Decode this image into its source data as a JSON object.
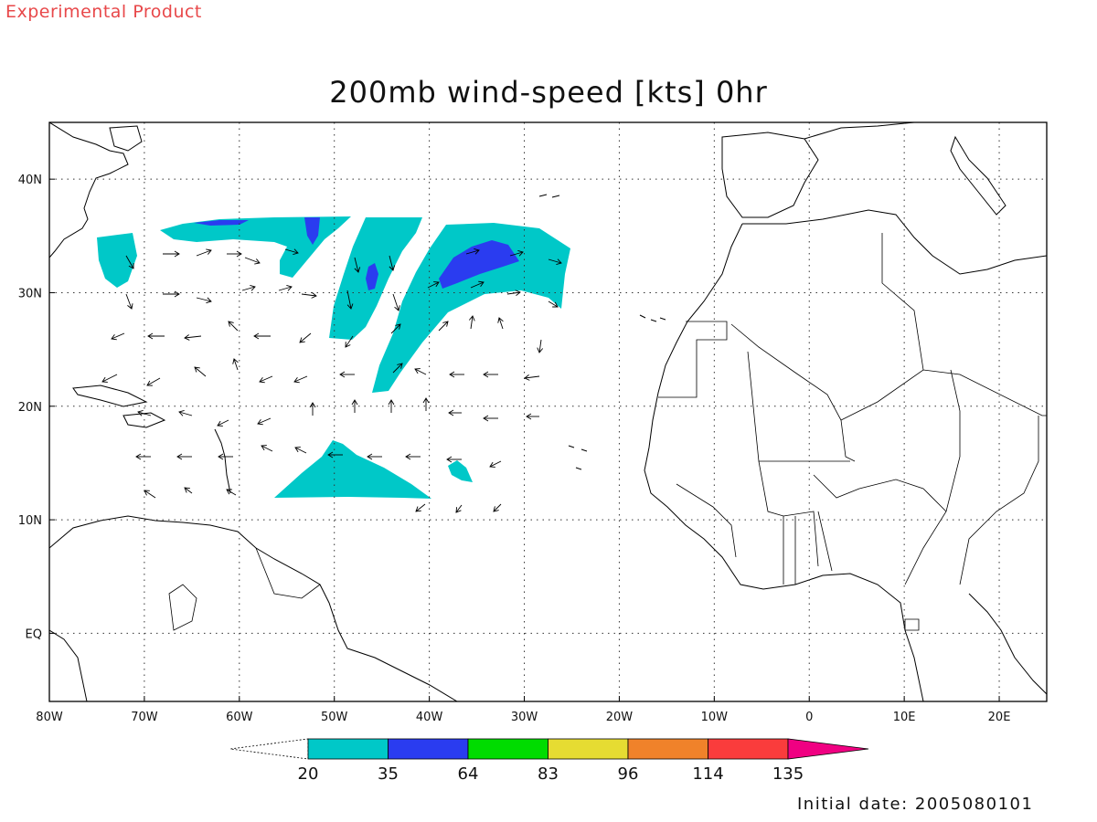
{
  "header": {
    "experimental_label": "Experimental Product",
    "title": "200mb wind-speed [kts] 0hr"
  },
  "footer": {
    "initial_date": "Initial date: 2005080101"
  },
  "map": {
    "lon_range": [
      -80,
      25
    ],
    "lat_range": [
      -6,
      45
    ],
    "lon_ticks": [
      {
        "lon": -80,
        "label": "80W"
      },
      {
        "lon": -70,
        "label": "70W"
      },
      {
        "lon": -60,
        "label": "60W"
      },
      {
        "lon": -50,
        "label": "50W"
      },
      {
        "lon": -40,
        "label": "40W"
      },
      {
        "lon": -30,
        "label": "30W"
      },
      {
        "lon": -20,
        "label": "20W"
      },
      {
        "lon": -10,
        "label": "10W"
      },
      {
        "lon": 0,
        "label": "0"
      },
      {
        "lon": 10,
        "label": "10E"
      },
      {
        "lon": 20,
        "label": "20E"
      }
    ],
    "lat_ticks": [
      {
        "lat": 40,
        "label": "40N"
      },
      {
        "lat": 30,
        "label": "30N"
      },
      {
        "lat": 20,
        "label": "20N"
      },
      {
        "lat": 10,
        "label": "10N"
      },
      {
        "lat": 0,
        "label": "EQ"
      }
    ],
    "colors": {
      "cyan": "#00c8c8",
      "blue": "#2a3cf0",
      "green": "#00dc00",
      "yellow": "#e6dc32",
      "orange": "#f0822a",
      "red": "#fa3c3c",
      "magenta": "#f00082",
      "grid": "#333333",
      "coast": "#000000"
    }
  },
  "colorbar": {
    "labels": [
      "20",
      "35",
      "64",
      "83",
      "96",
      "114",
      "135"
    ],
    "colors": [
      "#00c8c8",
      "#2a3cf0",
      "#00dc00",
      "#e6dc32",
      "#f0822a",
      "#fa3c3c",
      "#f00082"
    ]
  },
  "wind_shading": [
    {
      "level": "20-35",
      "color": "cyan",
      "region": "western jet segment near 35N"
    },
    {
      "level": "20-35",
      "color": "cyan",
      "region": "central jet near 35N 50W-40W"
    },
    {
      "level": "20-35",
      "color": "cyan",
      "region": "eastern jet near 33N 35W-25W"
    },
    {
      "level": "20-35",
      "color": "cyan",
      "region": "low-level patch near 15N 50W"
    },
    {
      "level": "35-64",
      "color": "blue",
      "region": "jet cores"
    }
  ]
}
